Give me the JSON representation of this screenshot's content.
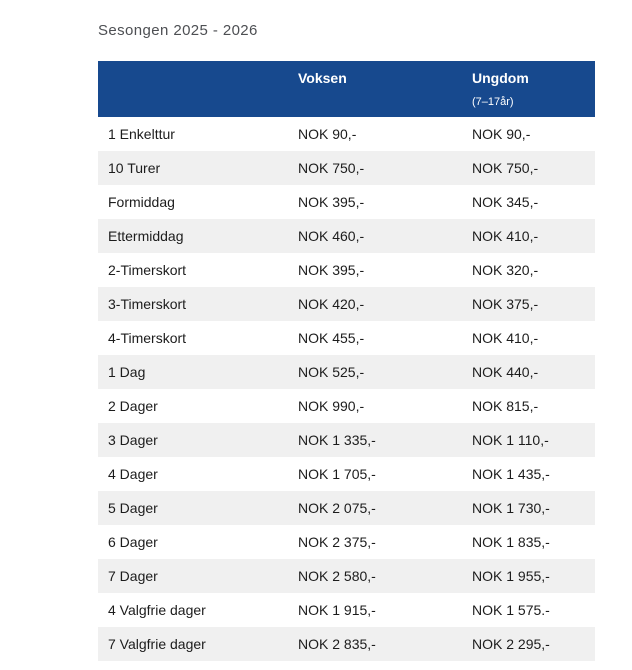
{
  "page_title": "Sesongen 2025 - 2026",
  "table": {
    "header": {
      "adult": "Voksen",
      "youth": "Ungdom",
      "youth_note": "(7–17år)"
    },
    "rows": [
      {
        "label": "1 Enkelttur",
        "adult": "NOK 90,-",
        "youth": "NOK 90,-"
      },
      {
        "label": "10 Turer",
        "adult": "NOK 750,-",
        "youth": "NOK 750,-"
      },
      {
        "label": "Formiddag",
        "adult": "NOK 395,-",
        "youth": "NOK 345,-"
      },
      {
        "label": "Ettermiddag",
        "adult": "NOK 460,-",
        "youth": "NOK 410,-"
      },
      {
        "label": "2-Timerskort",
        "adult": "NOK 395,-",
        "youth": "NOK 320,-"
      },
      {
        "label": "3-Timerskort",
        "adult": "NOK 420,-",
        "youth": "NOK 375,-"
      },
      {
        "label": "4-Timerskort",
        "adult": "NOK 455,-",
        "youth": "NOK 410,-"
      },
      {
        "label": "1 Dag",
        "adult": "NOK 525,-",
        "youth": "NOK 440,-"
      },
      {
        "label": "2 Dager",
        "adult": "NOK 990,-",
        "youth": "NOK 815,-"
      },
      {
        "label": "3 Dager",
        "adult": "NOK 1 335,-",
        "youth": "NOK 1 110,-"
      },
      {
        "label": "4 Dager",
        "adult": "NOK 1 705,-",
        "youth": "NOK 1 435,-"
      },
      {
        "label": "5 Dager",
        "adult": "NOK 2 075,-",
        "youth": "NOK 1 730,-"
      },
      {
        "label": "6 Dager",
        "adult": "NOK 2 375,-",
        "youth": "NOK 1 835,-"
      },
      {
        "label": "7 Dager",
        "adult": "NOK 2 580,-",
        "youth": "NOK 1 955,-"
      },
      {
        "label": "4 Valgfrie dager",
        "adult": "NOK 1 915,-",
        "youth": "NOK 1 575.-"
      },
      {
        "label": "7 Valgfrie dager",
        "adult": "NOK 2 835,-",
        "youth": "NOK 2 295,-"
      }
    ]
  },
  "colors": {
    "header_bg": "#17498E",
    "header_text": "#FFFFFF",
    "row_alt_bg": "#F0F0F0",
    "row_bg": "#FFFFFF",
    "text": "#1C1C1C",
    "title_text": "#4D4F53"
  }
}
